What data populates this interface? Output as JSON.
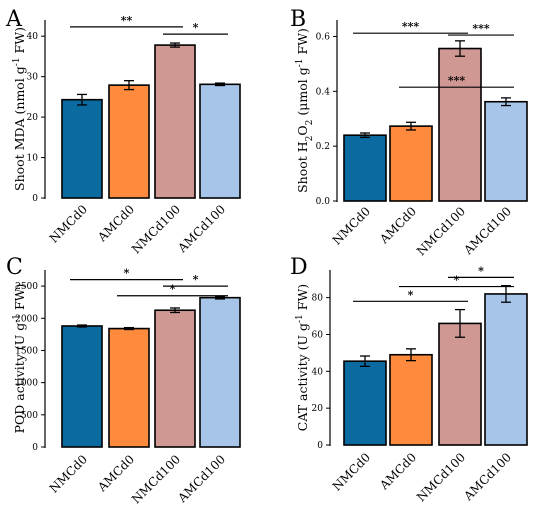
{
  "chart_data": [
    {
      "type": "bar",
      "panel": "A",
      "categories": [
        "NMCd0",
        "AMCd0",
        "NMCd100",
        "AMCd100"
      ],
      "values": [
        24.3,
        27.9,
        37.8,
        28.1
      ],
      "errors": [
        1.3,
        1.1,
        0.5,
        0.3
      ],
      "ylabel": "Shoot MDA (nmol g⁻¹ FW)",
      "ylim": [
        0,
        44
      ],
      "yticks": [
        0,
        10,
        20,
        30,
        40
      ],
      "tick_labels": [
        "0",
        "10",
        "20",
        "30",
        "40"
      ],
      "colors": [
        "#0B6AA0",
        "#FD8A3D",
        "#D09892",
        "#A7C5E9"
      ],
      "significance": [
        {
          "from": 0,
          "to": 2,
          "label": "**",
          "y": 42.3
        },
        {
          "from": 2,
          "to": 3,
          "label": "*",
          "y": 40.5
        }
      ]
    },
    {
      "type": "bar",
      "panel": "B",
      "categories": [
        "NMCd0",
        "AMCd0",
        "NMCd100",
        "AMCd100"
      ],
      "values": [
        0.24,
        0.273,
        0.556,
        0.362
      ],
      "errors": [
        0.008,
        0.014,
        0.028,
        0.014
      ],
      "ylabel": "Shoot H₂O₂ (μmol g⁻¹ FW)",
      "ylim": [
        0,
        0.66
      ],
      "yticks": [
        0.0,
        0.2,
        0.4,
        0.6
      ],
      "tick_labels": [
        "0.0",
        "0.2",
        "0.4",
        "0.6"
      ],
      "colors": [
        "#0B6AA0",
        "#FD8A3D",
        "#D09892",
        "#A7C5E9"
      ],
      "significance": [
        {
          "from": 0,
          "to": 2,
          "label": "***",
          "y": 0.612
        },
        {
          "from": 2,
          "to": 3,
          "label": "***",
          "y": 0.605
        },
        {
          "from": 1,
          "to": 3,
          "label": "***",
          "y": 0.415
        }
      ]
    },
    {
      "type": "bar",
      "panel": "C",
      "categories": [
        "NMCd0",
        "AMCd0",
        "NMCd100",
        "AMCd100"
      ],
      "values": [
        1880,
        1840,
        2125,
        2320
      ],
      "errors": [
        15,
        15,
        35,
        20
      ],
      "ylabel": "POD activity (U g⁻¹ FW)",
      "ylim": [
        0,
        2750
      ],
      "yticks": [
        0,
        500,
        1000,
        1500,
        2000,
        2500
      ],
      "tick_labels": [
        "0",
        "500",
        "1000",
        "1500",
        "2000",
        "2500"
      ],
      "colors": [
        "#0B6AA0",
        "#FD8A3D",
        "#D09892",
        "#A7C5E9"
      ],
      "significance": [
        {
          "from": 0,
          "to": 2,
          "label": "*",
          "y": 2600
        },
        {
          "from": 2,
          "to": 3,
          "label": "*",
          "y": 2500
        },
        {
          "from": 1,
          "to": 3,
          "label": "*",
          "y": 2350
        }
      ]
    },
    {
      "type": "bar",
      "panel": "D",
      "categories": [
        "NMCd0",
        "AMCd0",
        "NMCd100",
        "AMCd100"
      ],
      "values": [
        45.5,
        49.0,
        66.0,
        82.0
      ],
      "errors": [
        2.8,
        3.2,
        7.5,
        4.5
      ],
      "ylabel": "CAT activity (U g⁻¹ FW)",
      "ylim": [
        0,
        95
      ],
      "yticks": [
        0,
        20,
        40,
        60,
        80
      ],
      "tick_labels": [
        "0",
        "20",
        "40",
        "60",
        "80"
      ],
      "colors": [
        "#0B6AA0",
        "#FD8A3D",
        "#D09892",
        "#A7C5E9"
      ],
      "significance": [
        {
          "from": 0,
          "to": 2,
          "label": "*",
          "y": 78
        },
        {
          "from": 1,
          "to": 3,
          "label": "*",
          "y": 86
        },
        {
          "from": 2,
          "to": 3,
          "label": "*",
          "y": 91
        }
      ]
    }
  ]
}
